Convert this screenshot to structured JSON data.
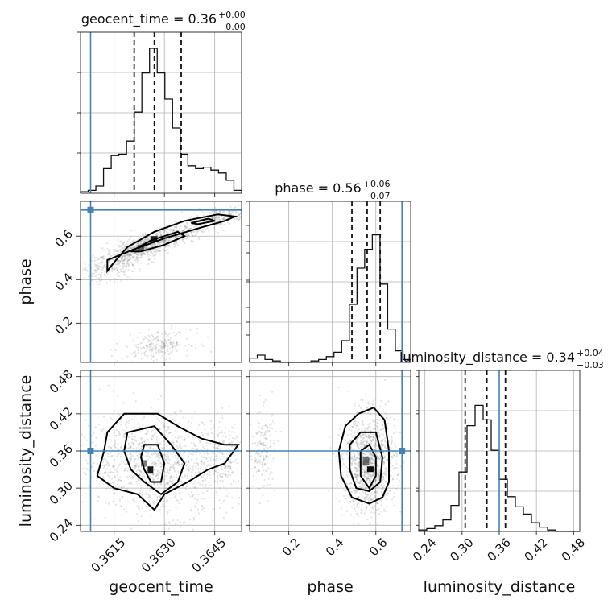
{
  "chart_data": {
    "type": "corner",
    "parameters": [
      {
        "key": "geocent_time",
        "label": "geocent_time",
        "title_prefix": "geocent_time = ",
        "median": "0.36",
        "plus": "+0.00",
        "minus": "−0.00",
        "truth": 0.3608,
        "range": [
          0.3605,
          0.3653
        ],
        "ticks": [
          0.3615,
          0.363,
          0.3645
        ],
        "tick_labels": [
          "0.3615",
          "0.3630",
          "0.3645"
        ],
        "quantiles": [
          0.3621,
          0.3627,
          0.3635
        ]
      },
      {
        "key": "phase",
        "label": "phase",
        "title_prefix": "phase = ",
        "median": "0.56",
        "plus": "+0.06",
        "minus": "−0.07",
        "truth": 0.72,
        "range": [
          0.02,
          0.76
        ],
        "ticks": [
          0.2,
          0.4,
          0.6
        ],
        "tick_labels": [
          "0.2",
          "0.4",
          "0.6"
        ],
        "quantiles": [
          0.49,
          0.56,
          0.62
        ]
      },
      {
        "key": "luminosity_distance",
        "label": "luminosity_distance",
        "title_prefix": "luminosity_distance = ",
        "median": "0.34",
        "plus": "+0.04",
        "minus": "−0.03",
        "truth": 0.36,
        "range": [
          0.23,
          0.49
        ],
        "ticks": [
          0.24,
          0.3,
          0.36,
          0.42,
          0.48
        ],
        "tick_labels": [
          "0.24",
          "0.30",
          "0.36",
          "0.42",
          "0.48"
        ],
        "quantiles": [
          0.305,
          0.34,
          0.37
        ]
      }
    ],
    "histograms": {
      "geocent_time": [
        0.01,
        0.02,
        0.05,
        0.17,
        0.26,
        0.27,
        0.36,
        0.56,
        0.83,
        1.0,
        0.83,
        0.65,
        0.45,
        0.27,
        0.19,
        0.17,
        0.18,
        0.16,
        0.14,
        0.09,
        0.02
      ],
      "phase": [
        0.03,
        0.05,
        0.02,
        0.01,
        0.0,
        0.0,
        0.0,
        0.0,
        0.01,
        0.02,
        0.04,
        0.07,
        0.15,
        0.4,
        0.65,
        0.78,
        0.88,
        0.54,
        0.23,
        0.08,
        0.02
      ],
      "luminosity_distance": [
        0.01,
        0.02,
        0.04,
        0.08,
        0.18,
        0.41,
        0.73,
        0.87,
        0.77,
        0.56,
        0.36,
        0.24,
        0.17,
        0.12,
        0.06,
        0.03,
        0.01,
        0.0,
        0.0,
        0.0
      ]
    },
    "grid": true
  }
}
